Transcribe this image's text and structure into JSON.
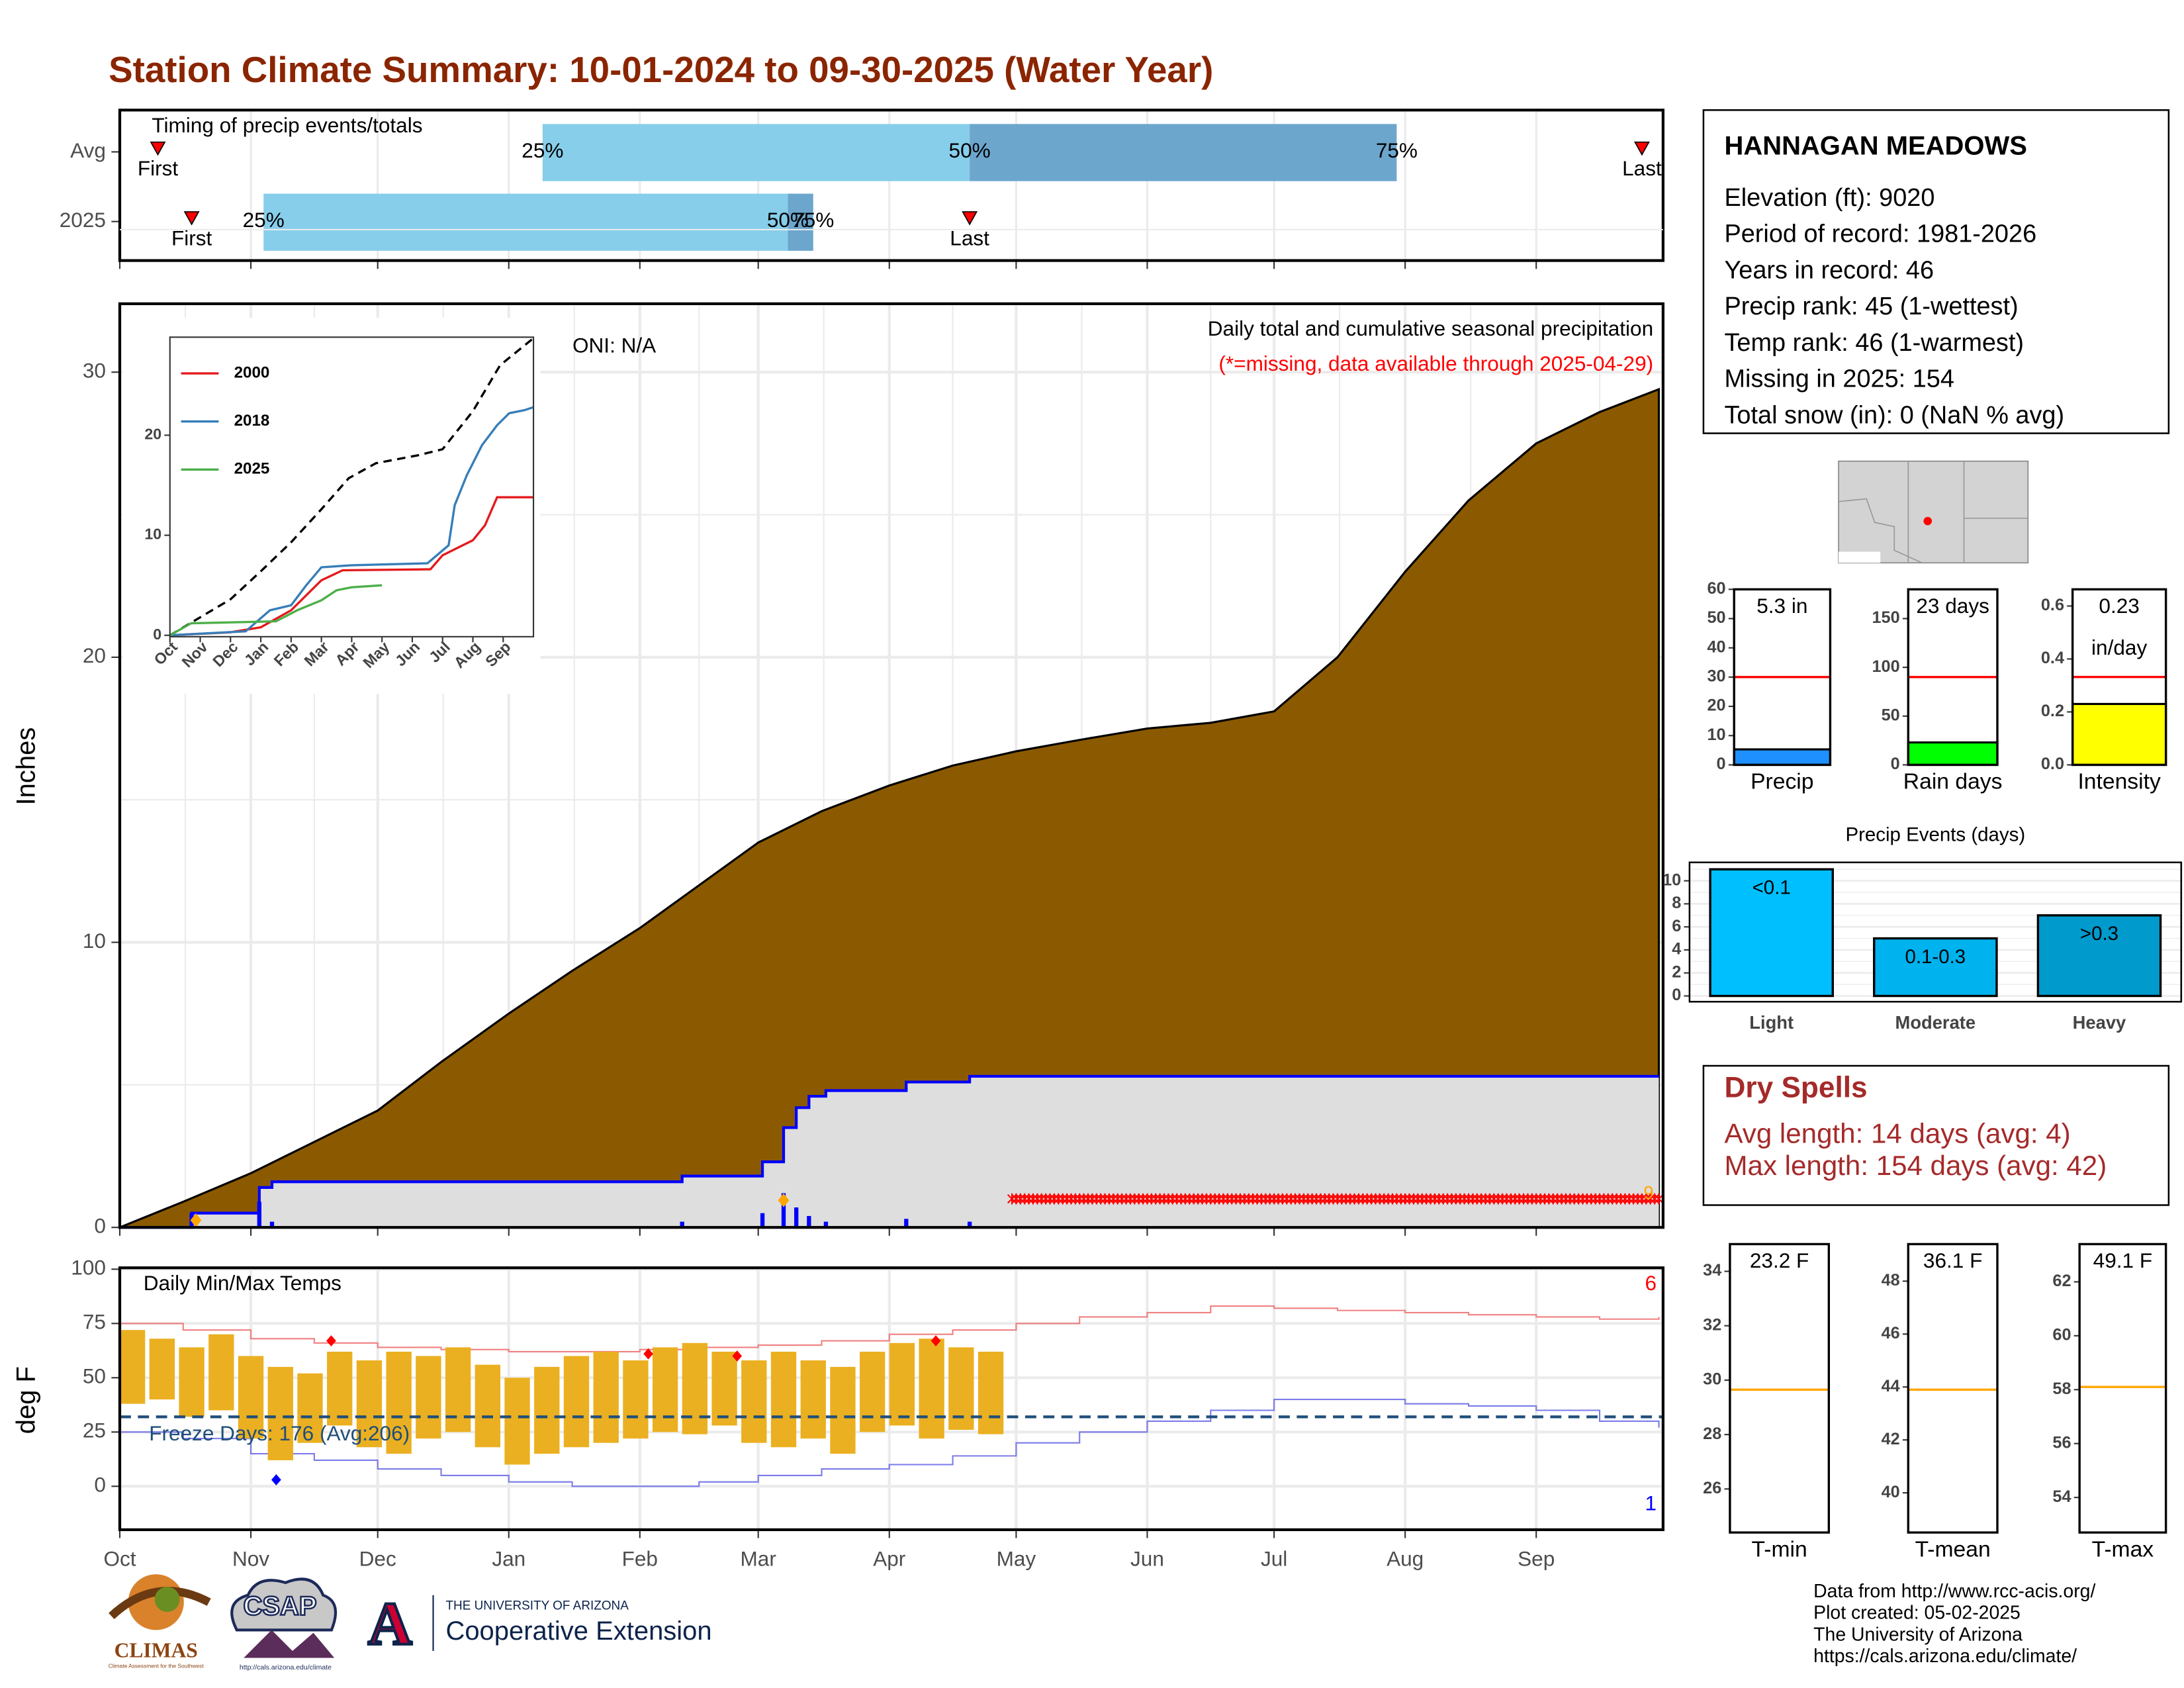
{
  "title": "Station Climate Summary: 10-01-2024 to 09-30-2025 (Water Year)",
  "chart_data": [
    {
      "type": "timing",
      "subtitle": "Timing of precip events/totals",
      "xlim": [
        0,
        365
      ],
      "xticks": [
        0,
        31,
        61,
        92,
        123,
        151,
        182,
        212,
        243,
        273,
        304,
        335
      ],
      "colors": [
        "#87ceeb",
        "#6ca6cd"
      ],
      "categories": [
        "Avg",
        "2025"
      ],
      "rows": [
        {
          "quartiles": [
            100,
            201,
            302
          ],
          "q_labels": [
            "25%",
            "50%",
            "75%"
          ],
          "first": {
            "value": 9,
            "label": "First"
          },
          "last": {
            "value": 360,
            "label": "Last"
          }
        },
        {
          "quartiles": [
            34,
            158,
            164
          ],
          "q_labels": [
            "25%",
            "50%",
            "75%"
          ],
          "first": {
            "value": 17,
            "label": "First"
          },
          "last": {
            "value": 201,
            "label": "Last"
          }
        }
      ]
    },
    {
      "type": "precip",
      "label": "Daily total and cumulative seasonal precipitation",
      "note": "(*=missing, data available through 2025-04-29)",
      "oni": "ONI: N/A",
      "ylabel": "Inches",
      "xlim": [
        0,
        365
      ],
      "xticks": [
        0,
        31,
        61,
        92,
        123,
        151,
        182,
        212,
        243,
        273,
        304,
        335
      ],
      "ylim": [
        0,
        32.4
      ],
      "yticks": [
        0,
        10,
        20,
        30
      ],
      "grid": true,
      "avg": {
        "color": "#8b5a00",
        "x": [
          0,
          15,
          31,
          46,
          61,
          76,
          92,
          107,
          123,
          137,
          151,
          166,
          182,
          197,
          212,
          227,
          243,
          258,
          273,
          288,
          304,
          319,
          335,
          350,
          364
        ],
        "values": [
          0,
          0.9,
          1.9,
          3.0,
          4.1,
          5.8,
          7.5,
          9.0,
          10.5,
          12.0,
          13.5,
          14.6,
          15.5,
          16.2,
          16.7,
          17.1,
          17.5,
          17.7,
          18.1,
          20.0,
          23.0,
          25.5,
          27.5,
          28.6,
          29.4
        ]
      },
      "current": {
        "color": "#0000ff",
        "fill": "#dedede",
        "x": [
          0,
          17,
          33,
          36,
          133,
          152,
          157,
          160,
          163,
          167,
          186,
          201,
          364
        ],
        "values": [
          0,
          0.5,
          1.4,
          1.6,
          1.8,
          2.3,
          3.5,
          4.2,
          4.6,
          4.8,
          5.1,
          5.3,
          5.3
        ]
      },
      "daily": {
        "color": "#0000ff",
        "x": [
          17,
          33,
          36,
          133,
          152,
          157,
          160,
          163,
          167,
          186,
          201
        ],
        "values": [
          0.5,
          0.9,
          0.2,
          0.2,
          0.5,
          1.2,
          0.7,
          0.4,
          0.2,
          0.3,
          0.2
        ]
      },
      "highlights": {
        "color": "#ffa500",
        "x": [
          18,
          157
        ],
        "values": [
          0.25,
          0.95
        ]
      },
      "missing": {
        "color": "#ff0000",
        "from": 211,
        "to": 364,
        "value": 1.0
      },
      "corner_label": "9"
    },
    {
      "type": "line",
      "xlim": [
        0,
        12
      ],
      "ylim": [
        0,
        29.8
      ],
      "yticks": [
        0,
        10,
        20
      ],
      "xticks": [
        {
          "value": 0,
          "label": "Oct"
        },
        {
          "value": 1,
          "label": "Nov"
        },
        {
          "value": 2,
          "label": "Dec"
        },
        {
          "value": 3,
          "label": "Jan"
        },
        {
          "value": 4,
          "label": "Feb"
        },
        {
          "value": 5,
          "label": "Mar"
        },
        {
          "value": 6,
          "label": "Apr"
        },
        {
          "value": 7,
          "label": "May"
        },
        {
          "value": 8,
          "label": "Jun"
        },
        {
          "value": 9,
          "label": "Jul"
        },
        {
          "value": 10,
          "label": "Aug"
        },
        {
          "value": 11,
          "label": "Sep"
        }
      ],
      "series": [
        {
          "color": "#000000",
          "dash": true,
          "x": [
            0,
            1,
            2,
            3,
            4,
            5,
            5.9,
            6.8,
            8.2,
            9,
            10,
            10.9,
            12
          ],
          "values": [
            0,
            1.8,
            3.6,
            6.4,
            9.3,
            12.6,
            15.7,
            17.2,
            18,
            18.6,
            22.4,
            27,
            29.7
          ]
        },
        {
          "name": "2000",
          "color": "#e41a1c",
          "x": [
            0,
            2,
            3,
            4,
            5,
            5.7,
            8.6,
            9,
            10,
            10.4,
            10.8,
            12
          ],
          "values": [
            0,
            0.3,
            0.8,
            2.5,
            5.5,
            6.5,
            6.6,
            8,
            9.5,
            11,
            13.8,
            13.8
          ]
        },
        {
          "name": "2018",
          "color": "#377eb8",
          "x": [
            0,
            2.5,
            3.3,
            4,
            4.5,
            5,
            6,
            8.5,
            9.2,
            9.4,
            9.8,
            10.3,
            10.8,
            11.2,
            11.7,
            12
          ],
          "values": [
            0,
            0.4,
            2.5,
            3,
            5,
            6.8,
            7,
            7.2,
            9,
            13,
            16,
            19,
            21,
            22.2,
            22.5,
            22.8
          ]
        },
        {
          "name": "2025",
          "color": "#4daf4a",
          "x": [
            0,
            0.7,
            3.5,
            4.2,
            5,
            5.5,
            6,
            7
          ],
          "values": [
            0,
            1.2,
            1.4,
            2.5,
            3.5,
            4.5,
            4.8,
            5
          ]
        }
      ]
    },
    {
      "type": "temps",
      "title": "Daily Min/Max Temps",
      "ylabel": "deg F",
      "ylim": [
        -20,
        100
      ],
      "yticks": [
        0,
        25,
        50,
        75,
        100
      ],
      "xlim": [
        0,
        365
      ],
      "xticks": [
        {
          "value": 0,
          "label": "Oct"
        },
        {
          "value": 31,
          "label": "Nov"
        },
        {
          "value": 61,
          "label": "Dec"
        },
        {
          "value": 92,
          "label": "Jan"
        },
        {
          "value": 123,
          "label": "Feb"
        },
        {
          "value": 151,
          "label": "Mar"
        },
        {
          "value": 182,
          "label": "Apr"
        },
        {
          "value": 212,
          "label": "May"
        },
        {
          "value": 243,
          "label": "Jun"
        },
        {
          "value": 273,
          "label": "Jul"
        },
        {
          "value": 304,
          "label": "Aug"
        },
        {
          "value": 335,
          "label": "Sep"
        }
      ],
      "normal_max": {
        "color": "#f08080",
        "x": [
          0,
          15,
          31,
          46,
          61,
          76,
          92,
          107,
          123,
          137,
          151,
          166,
          182,
          197,
          212,
          227,
          243,
          258,
          273,
          288,
          304,
          319,
          335,
          350,
          364
        ],
        "values": [
          75,
          72,
          68,
          66,
          64,
          63,
          62,
          62,
          63,
          64,
          65,
          67,
          70,
          72,
          75,
          78,
          80,
          83,
          82,
          81,
          80,
          79,
          78,
          77,
          78
        ]
      },
      "normal_min": {
        "color": "#7b7bea",
        "x": [
          0,
          15,
          31,
          46,
          61,
          76,
          92,
          107,
          123,
          137,
          151,
          166,
          182,
          197,
          212,
          227,
          243,
          258,
          273,
          288,
          304,
          319,
          335,
          350,
          364
        ],
        "values": [
          25,
          22,
          15,
          12,
          8,
          5,
          2,
          0,
          0,
          2,
          5,
          8,
          10,
          14,
          20,
          25,
          30,
          35,
          40,
          40,
          38,
          37,
          35,
          30,
          27
        ]
      },
      "bars": {
        "color": "#ebb021",
        "x": [
          3,
          10,
          17,
          24,
          31,
          38,
          45,
          52,
          59,
          66,
          73,
          80,
          87,
          94,
          101,
          108,
          115,
          122,
          129,
          136,
          143,
          150,
          157,
          164,
          171,
          178,
          185,
          192,
          199,
          206
        ],
        "low": [
          38,
          40,
          32,
          35,
          22,
          12,
          20,
          28,
          18,
          15,
          22,
          25,
          18,
          10,
          15,
          18,
          20,
          22,
          25,
          24,
          28,
          20,
          18,
          22,
          15,
          25,
          28,
          22,
          26,
          24
        ],
        "high": [
          72,
          68,
          64,
          70,
          60,
          55,
          52,
          62,
          58,
          62,
          60,
          64,
          56,
          50,
          55,
          60,
          62,
          58,
          64,
          66,
          62,
          58,
          62,
          58,
          55,
          62,
          66,
          68,
          64,
          62
        ]
      },
      "record_high": {
        "color": "#ff0000",
        "x": [
          50,
          125,
          146,
          193
        ],
        "values": [
          67,
          61,
          60,
          67
        ]
      },
      "record_low": {
        "color": "#0000ff",
        "x": [
          37
        ],
        "values": [
          3
        ]
      },
      "freeze": {
        "value": 32,
        "label": "Freeze Days: 176 (Avg:206)",
        "color": "#1f4e79"
      },
      "high_count": "6",
      "low_count": "1"
    },
    {
      "type": "gauge",
      "value": 5.3,
      "value_label": "5.3 in",
      "avg": 30,
      "avg_color": "#ff0000",
      "color": "#1e90ff",
      "xlabel": "Precip",
      "ylim": [
        0,
        60
      ],
      "yticks": [
        0,
        10,
        20,
        30,
        40,
        50,
        60
      ]
    },
    {
      "type": "gauge",
      "value": 23,
      "value_label": "23 days",
      "avg": 90,
      "avg_color": "#ff0000",
      "color": "#00ff00",
      "xlabel": "Rain days",
      "ylim": [
        0,
        180
      ],
      "yticks": [
        0,
        50,
        100,
        150
      ]
    },
    {
      "type": "gauge",
      "value": 0.23,
      "value_label": "0.23",
      "unit": "in/day",
      "avg": 0.332,
      "avg_color": "#ff0000",
      "color": "#ffff00",
      "xlabel": "Intensity",
      "ylim": [
        0,
        0.663
      ],
      "yticks": [
        {
          "value": 0,
          "label": "0.0"
        },
        0.2,
        0.4,
        0.6
      ]
    },
    {
      "type": "bar",
      "title": "Precip Events (days)",
      "categories": [
        "Light",
        "Moderate",
        "Heavy"
      ],
      "values": [
        11,
        5,
        7
      ],
      "bar_labels": [
        "<0.1",
        "0.1-0.3",
        ">0.3"
      ],
      "colors": [
        "#00bfff",
        "#00b2ee",
        "#009acd"
      ],
      "ylim": [
        -0.5,
        11.6
      ],
      "yticks": [
        0,
        2,
        4,
        6,
        8,
        10
      ]
    },
    {
      "type": "gauge",
      "value": 23.2,
      "value_label": "23.2 F",
      "avg": 29.65,
      "avg_color": "#ffa500",
      "xlabel": "T-min",
      "ylim": [
        24.4,
        35
      ],
      "yticks": [
        26,
        28,
        30,
        32,
        34
      ]
    },
    {
      "type": "gauge",
      "value": 36.1,
      "value_label": "36.1 F",
      "avg": 43.9,
      "avg_color": "#ffa500",
      "xlabel": "T-mean",
      "ylim": [
        38.5,
        49.4
      ],
      "yticks": [
        40,
        42,
        44,
        46,
        48
      ]
    },
    {
      "type": "gauge",
      "value": 49.1,
      "value_label": "49.1 F",
      "avg": 58.1,
      "avg_color": "#ffa500",
      "xlabel": "T-max",
      "ylim": [
        52.7,
        63.4
      ],
      "yticks": [
        54,
        56,
        58,
        60,
        62
      ]
    }
  ],
  "station": {
    "name": "HANNAGAN MEADOWS",
    "lines": [
      "Elevation (ft): 9020",
      "Period of record: 1981-2026",
      "Years in record: 46",
      "Precip rank: 45 (1-wettest)",
      "Temp rank: 46 (1-warmest)",
      "Missing in 2025: 154",
      "Total snow (in): 0 (NaN % avg)"
    ]
  },
  "dry_spells": {
    "title": "Dry Spells",
    "lines": [
      "Avg length: 14 days (avg: 4)",
      "Max length: 154 days (avg: 42)"
    ]
  },
  "logos": {
    "climas": "CLIMAS",
    "climas_sub": "Climate Assessment for the Southwest",
    "csap": "CSAP",
    "csap_url": "http://cals.arizona.edu/climate",
    "ua": "THE UNIVERSITY OF ARIZONA",
    "extension": "Cooperative Extension"
  },
  "credits": [
    "Data from http://www.rcc-acis.org/",
    "Plot created: 05-02-2025",
    "The University of Arizona",
    "https://cals.arizona.edu/climate/"
  ]
}
